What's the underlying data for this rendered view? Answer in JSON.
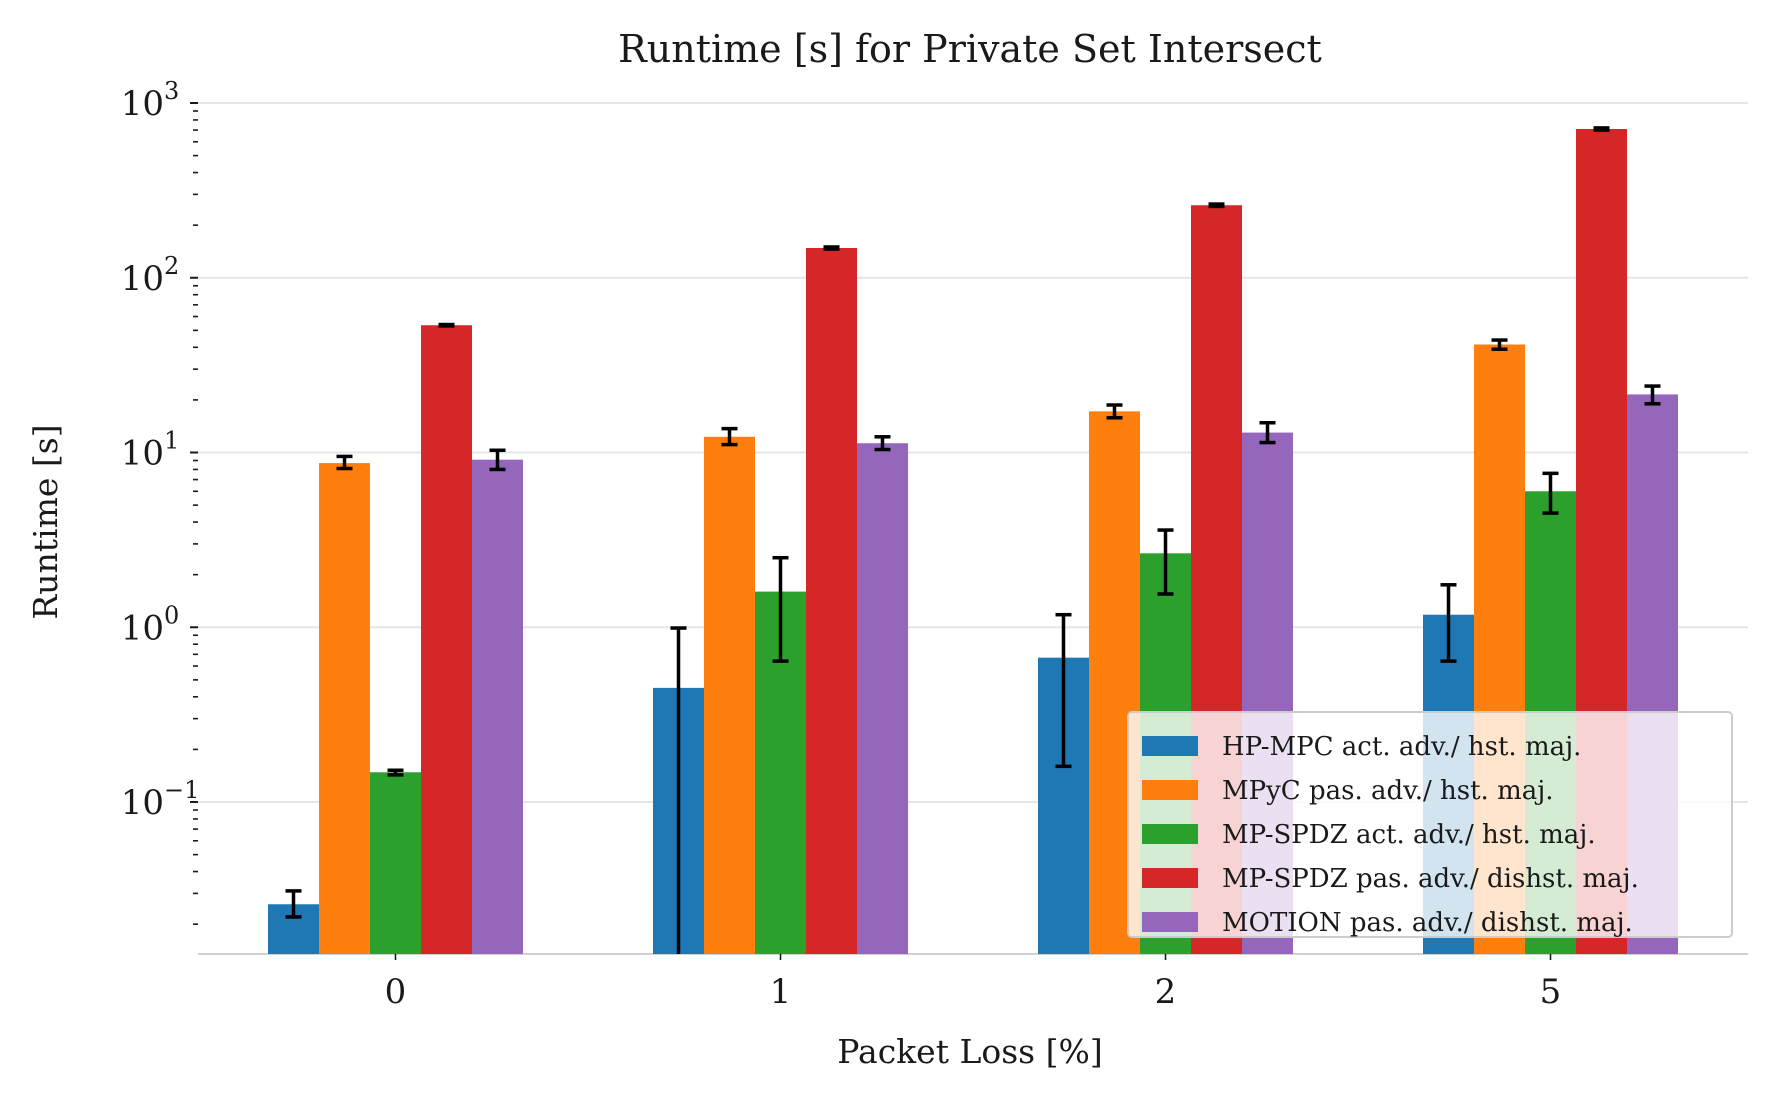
{
  "chart_data": {
    "type": "bar",
    "title": "Runtime [s] for Private Set Intersect",
    "xlabel": "Packet Loss [%]",
    "ylabel": "Runtime [s]",
    "yscale": "log",
    "ylim": [
      0.0135,
      1000
    ],
    "grid": "horizontal major",
    "legend_position": "lower-right",
    "categories": [
      "0",
      "1",
      "2",
      "5"
    ],
    "y_ticks": [
      {
        "value": 0.1,
        "base": "10",
        "exp": "−1"
      },
      {
        "value": 1,
        "base": "10",
        "exp": "0"
      },
      {
        "value": 10,
        "base": "10",
        "exp": "1"
      },
      {
        "value": 100,
        "base": "10",
        "exp": "2"
      },
      {
        "value": 1000,
        "base": "10",
        "exp": "3"
      }
    ],
    "series": [
      {
        "name": "HP-MPC act. adv./ hst. maj.",
        "color": "#1f77b4",
        "values": [
          0.026,
          0.45,
          0.67,
          1.18
        ],
        "err_low": [
          0.022,
          0.0001,
          0.16,
          0.64
        ],
        "err_high": [
          0.031,
          0.99,
          1.18,
          1.75
        ]
      },
      {
        "name": "MPyC pas. adv./ hst. maj.",
        "color": "#ff7f0e",
        "values": [
          8.7,
          12.3,
          17.2,
          41.5
        ],
        "err_low": [
          8.1,
          11.1,
          15.8,
          39.0
        ],
        "err_high": [
          9.5,
          13.7,
          18.7,
          44.0
        ]
      },
      {
        "name": "MP-SPDZ act. adv./ hst. maj.",
        "color": "#2ca02c",
        "values": [
          0.148,
          1.6,
          2.65,
          6.0
        ],
        "err_low": [
          0.143,
          0.64,
          1.55,
          4.5
        ],
        "err_high": [
          0.152,
          2.5,
          3.6,
          7.6
        ]
      },
      {
        "name": "MP-SPDZ pas. adv./ dishst. maj.",
        "color": "#d62728",
        "values": [
          53.5,
          148,
          260,
          710
        ],
        "err_low": [
          53.0,
          146,
          256,
          700
        ],
        "err_high": [
          54.0,
          150,
          264,
          720
        ]
      },
      {
        "name": "MOTION pas. adv./ dishst. maj.",
        "color": "#9467bd",
        "values": [
          9.1,
          11.3,
          13.0,
          21.5
        ],
        "err_low": [
          8.0,
          10.4,
          11.4,
          19.0
        ],
        "err_high": [
          10.3,
          12.3,
          14.8,
          24.0
        ]
      }
    ]
  }
}
